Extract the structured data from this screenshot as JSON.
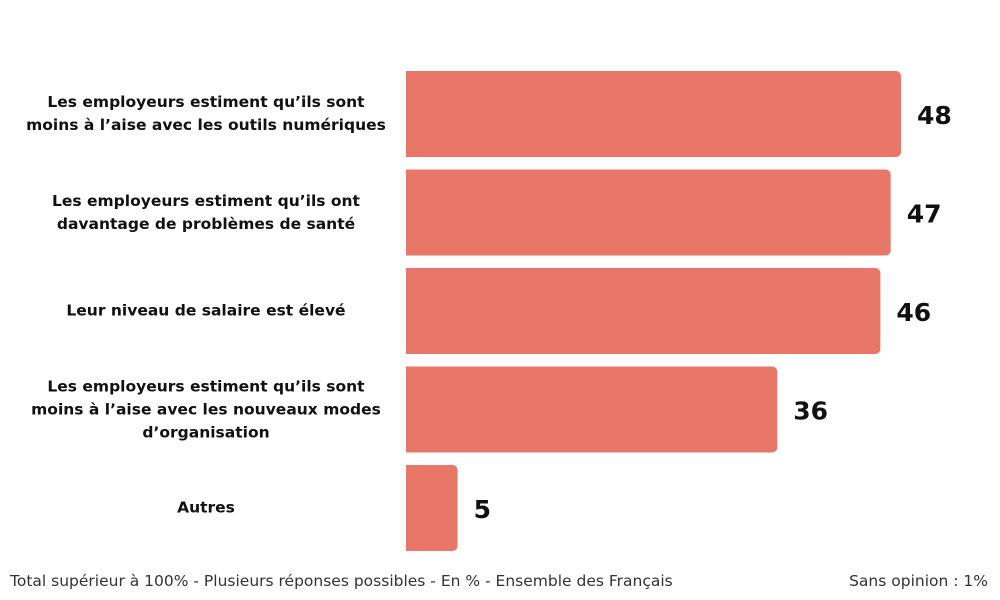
{
  "chart_data": {
    "type": "bar",
    "orientation": "horizontal",
    "categories": [
      "Les employeurs estiment qu’ils sont\nmoins à l’aise avec les outils numériques",
      "Les employeurs estiment qu’ils ont\ndavantage de problèmes de santé",
      "Leur niveau de salaire est élevé",
      "Les employeurs estiment qu’ils sont\nmoins à l’aise avec les nouveaux modes\nd’organisation",
      "Autres"
    ],
    "values": [
      48,
      47,
      46,
      36,
      5
    ],
    "data_labels": [
      "48",
      "47",
      "46",
      "36",
      "5"
    ],
    "bar_color": "#E8776A",
    "xlim": [
      0,
      48
    ],
    "grid": false,
    "legend": "none"
  },
  "footer": {
    "note": "Total supérieur à 100% - Plusieurs réponses possibles - En % - Ensemble des Français",
    "no_opinion": "Sans opinion : 1%"
  }
}
